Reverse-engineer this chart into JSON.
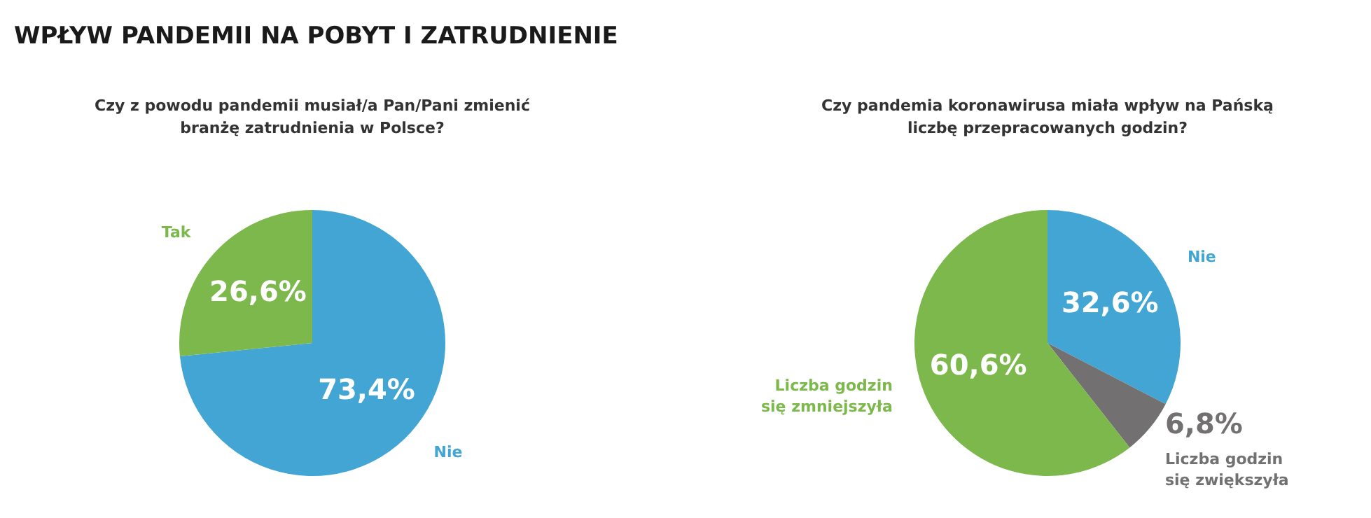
{
  "chart_data": [
    {
      "type": "other",
      "title": "WPŁYW PANDEMII NA POBYT I ZATRUDNIENIE"
    },
    {
      "type": "pie",
      "title": "Czy z powodu pandemii musiał/a Pan/Pani zmienić branżę zatrudnienia w Polsce?",
      "categories": [
        "Nie",
        "Tak"
      ],
      "values": [
        73.4,
        26.6
      ],
      "colors": [
        "#42a5d3",
        "#7cb84c"
      ],
      "value_labels": [
        "73,4%",
        "26,6%"
      ],
      "legend": false
    },
    {
      "type": "pie",
      "title": "Czy pandemia koronawirusa miała wpływ na Pańską liczbę przepracowanych godzin?",
      "categories": [
        "Nie",
        "Liczba godzin się zwiększyła",
        "Liczba godzin się zmniejszyła"
      ],
      "values": [
        32.6,
        6.8,
        60.6
      ],
      "colors": [
        "#42a5d3",
        "#727070",
        "#7cb84c"
      ],
      "value_labels": [
        "32,6%",
        "6,8%",
        "60,6%"
      ],
      "legend": false
    }
  ]
}
